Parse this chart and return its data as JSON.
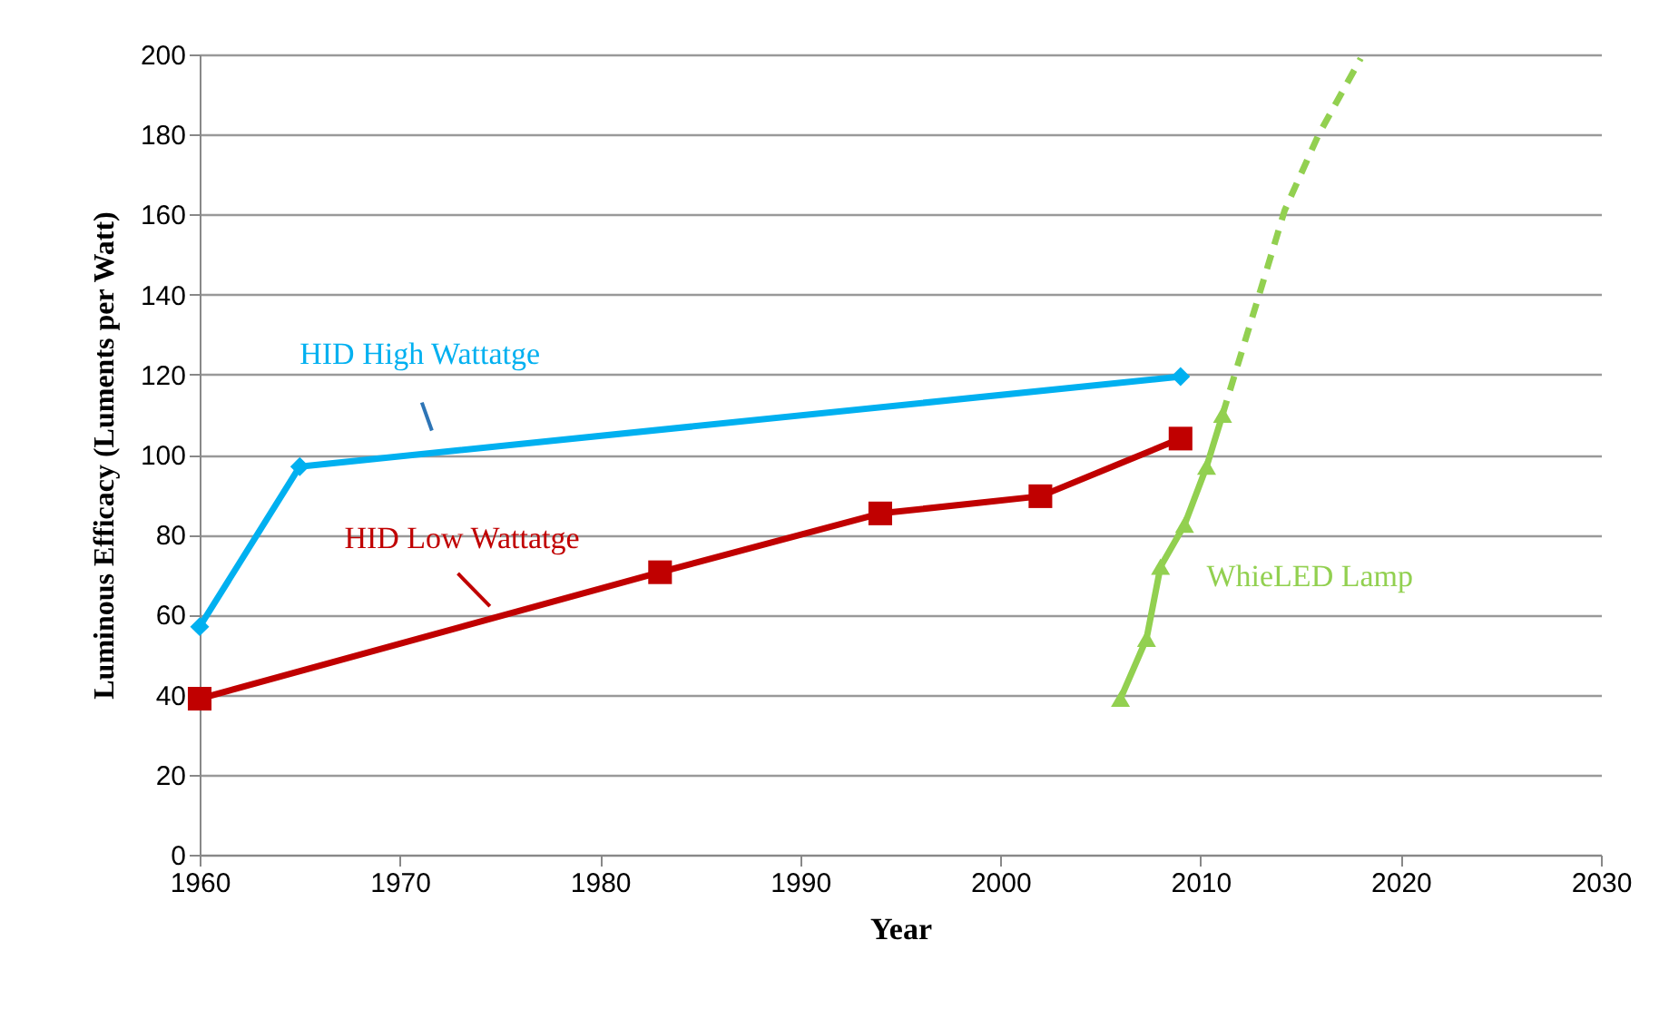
{
  "chart_data": {
    "type": "line",
    "xlabel": "Year",
    "ylabel": "Luminous Efficacy (Luments per Watt)",
    "xlim": [
      1960,
      2030
    ],
    "xticks": [
      1960,
      1970,
      1980,
      1990,
      2000,
      2010,
      2020,
      2030
    ],
    "ylim": [
      0,
      200
    ],
    "yticks": [
      0,
      20,
      40,
      60,
      80,
      100,
      120,
      140,
      160,
      180,
      200
    ],
    "grid": "y",
    "series": [
      {
        "name": "HID High Wattatge",
        "color": "#00b0f0",
        "marker": "diamond",
        "x": [
          1960,
          1965,
          2009
        ],
        "values": [
          57,
          97,
          119.5
        ]
      },
      {
        "name": "HID Low Wattatge",
        "color": "#c00000",
        "marker": "square",
        "x": [
          1960,
          1983,
          1994,
          2002,
          2009
        ],
        "values": [
          39,
          70.6,
          85.3,
          89.6,
          104
        ]
      },
      {
        "name": "WhieLED Lamp",
        "color": "#92d050",
        "marker": "triangle",
        "x": [
          2006,
          2007.3,
          2008,
          2009.2,
          2010.3,
          2011.1
        ],
        "values": [
          39,
          54,
          72,
          82.5,
          97,
          110
        ]
      },
      {
        "color": "#92d050",
        "marker": "none",
        "line_style": "dashed",
        "x": [
          2011.1,
          2012.9,
          2014.2,
          2015.9,
          2018
        ],
        "values": [
          110,
          139.5,
          161,
          180,
          199
        ]
      }
    ]
  }
}
